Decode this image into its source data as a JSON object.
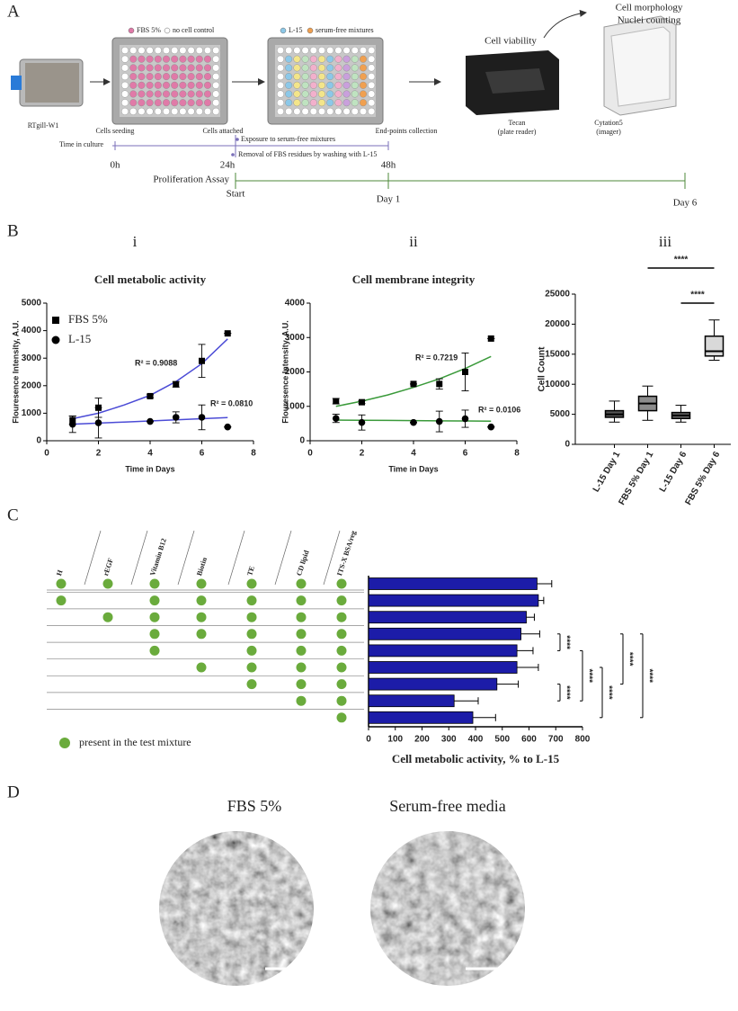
{
  "panel_labels": [
    "A",
    "B",
    "C",
    "D"
  ],
  "subpanels": [
    "i",
    "ii",
    "iii"
  ],
  "workflow": {
    "cell_line": "RTgill-W1",
    "plate1_legend": [
      "FBS 5%",
      "no cell control"
    ],
    "plate2_legend": [
      "L-15",
      "serum-free mixtures"
    ],
    "viability": "Cell viability",
    "morphology": [
      "Cell morphology",
      "Nuclei counting"
    ],
    "reader": [
      "Tecan",
      "(plate reader)"
    ],
    "imager": [
      "Cytation5",
      "(imager)"
    ],
    "timeline": {
      "label": "Time in culture",
      "events": [
        "Cells seeding",
        "Cells attached",
        "End-points collection"
      ],
      "steps": [
        "Exposure to serum-free mixtures",
        "Removal of FBS residues by washing with L-15"
      ],
      "ticks": [
        "0h",
        "24h",
        "48h"
      ]
    },
    "proliferation": {
      "label": "Proliferation Assay",
      "ticks": [
        "Start",
        "Day 1",
        "Day 6"
      ]
    }
  },
  "chart_data": [
    {
      "type": "scatter",
      "title": "Cell metabolic activity",
      "xlabel": "Time in Days",
      "ylabel": "Flouresence Intensity, A.U.",
      "xlim": [
        0,
        8
      ],
      "xticks": [
        0,
        2,
        4,
        6,
        8
      ],
      "ylim": [
        0,
        5000
      ],
      "yticks": [
        0,
        1000,
        2000,
        3000,
        4000,
        5000
      ],
      "legend": true,
      "fit_x": [
        1,
        2,
        3,
        4,
        5,
        6,
        7
      ],
      "series": [
        {
          "name": "FBS 5%",
          "color": "#000000",
          "marker": "square",
          "x": [
            1,
            2,
            4,
            5,
            6,
            7
          ],
          "values": [
            750,
            1200,
            1620,
            2050,
            2900,
            3900
          ],
          "errors": [
            150,
            350,
            50,
            100,
            600,
            0
          ],
          "fit_values": [
            800,
            1000,
            1300,
            1650,
            2150,
            2800,
            3700
          ],
          "fit_color": "#4b4bd6",
          "r2": "R² = 0.9088"
        },
        {
          "name": "L-15",
          "color": "#000000",
          "marker": "circle",
          "x": [
            1,
            2,
            4,
            5,
            6,
            7
          ],
          "values": [
            600,
            650,
            700,
            850,
            850,
            500
          ],
          "errors": [
            300,
            550,
            0,
            200,
            450,
            0
          ],
          "fit_values": [
            600,
            640,
            680,
            720,
            760,
            800,
            840
          ],
          "fit_color": "#4b4bd6",
          "r2": "R² = 0.0810"
        }
      ]
    },
    {
      "type": "scatter",
      "title": "Cell membrane integrity",
      "xlabel": "Time in Days",
      "ylabel": "Flouresence Intensity, A.U.",
      "xlim": [
        0,
        8
      ],
      "xticks": [
        0,
        2,
        4,
        6,
        8
      ],
      "ylim": [
        0,
        4000
      ],
      "yticks": [
        0,
        1000,
        2000,
        3000,
        4000
      ],
      "legend": false,
      "fit_x": [
        1,
        2,
        3,
        4,
        5,
        6,
        7
      ],
      "series": [
        {
          "name": "FBS 5%",
          "color": "#000000",
          "marker": "square",
          "x": [
            1,
            2,
            4,
            5,
            6,
            7
          ],
          "values": [
            1150,
            1120,
            1650,
            1650,
            2000,
            2970
          ],
          "errors": [
            80,
            40,
            0,
            150,
            550,
            0
          ],
          "fit_values": [
            1000,
            1150,
            1330,
            1550,
            1800,
            2100,
            2450
          ],
          "fit_color": "#3a9a3a",
          "r2": "R² = 0.7219"
        },
        {
          "name": "L-15",
          "color": "#000000",
          "marker": "circle",
          "x": [
            1,
            2,
            4,
            5,
            6,
            7
          ],
          "values": [
            650,
            530,
            530,
            560,
            640,
            400
          ],
          "errors": [
            120,
            220,
            0,
            300,
            250,
            0
          ],
          "fit_values": [
            600,
            595,
            590,
            585,
            580,
            575,
            570
          ],
          "fit_color": "#3a9a3a",
          "r2": "R² = 0.0106"
        }
      ]
    },
    {
      "type": "box",
      "ylabel": "Cell Count",
      "ylim": [
        0,
        25000
      ],
      "yticks": [
        0,
        5000,
        10000,
        15000,
        20000,
        25000
      ],
      "categories": [
        "L-15 Day 1",
        "FBS 5% Day 1",
        "L-15 Day 6",
        "FBS 5% Day 6"
      ],
      "boxes": [
        {
          "min": 3700,
          "q1": 4500,
          "median": 5000,
          "q3": 5600,
          "max": 7200,
          "color": "#555555"
        },
        {
          "min": 4000,
          "q1": 5600,
          "median": 6800,
          "q3": 8000,
          "max": 9700,
          "color": "#8c8c8c"
        },
        {
          "min": 3700,
          "q1": 4300,
          "median": 4800,
          "q3": 5300,
          "max": 6500,
          "color": "#666666"
        },
        {
          "min": 14000,
          "q1": 14700,
          "median": 15500,
          "q3": 18000,
          "max": 20700,
          "color": "#d9d9d9"
        }
      ],
      "significance": [
        {
          "pair": [
            1,
            3
          ],
          "label": "****"
        },
        {
          "pair": [
            2,
            3
          ],
          "label": "****"
        }
      ]
    },
    {
      "type": "barh",
      "xlabel": "Cell metabolic activity, % to L-15",
      "xlim": [
        0,
        800
      ],
      "xticks": [
        0,
        100,
        200,
        300,
        400,
        500,
        600,
        700,
        800
      ],
      "color": "#1c1ca8",
      "values": [
        630,
        635,
        590,
        570,
        555,
        555,
        480,
        320,
        390
      ],
      "errors": [
        55,
        20,
        30,
        70,
        60,
        80,
        80,
        90,
        85
      ],
      "significance": [
        {
          "pair": [
            3,
            4
          ],
          "label": "****"
        },
        {
          "pair": [
            6,
            7
          ],
          "label": "****"
        },
        {
          "pair": [
            4,
            7
          ],
          "label": "****"
        },
        {
          "pair": [
            5,
            8
          ],
          "label": "****"
        },
        {
          "pair": [
            3,
            6
          ],
          "label": "****"
        },
        {
          "pair": [
            3,
            8
          ],
          "label": "****"
        }
      ]
    }
  ],
  "table": {
    "columns": [
      "H",
      "rEGF",
      "Vitamin B12",
      "Biotin",
      "TE",
      "CD lipid",
      "ITS-X BSA/reg"
    ],
    "legend": "present in the test mixture",
    "rows": [
      [
        true,
        true,
        true,
        true,
        true,
        true,
        true
      ],
      [
        true,
        false,
        true,
        true,
        true,
        true,
        true
      ],
      [
        false,
        true,
        true,
        true,
        true,
        true,
        true
      ],
      [
        false,
        false,
        true,
        true,
        true,
        true,
        true
      ],
      [
        false,
        false,
        true,
        false,
        true,
        true,
        true
      ],
      [
        false,
        false,
        false,
        true,
        true,
        true,
        true
      ],
      [
        false,
        false,
        false,
        false,
        true,
        true,
        true
      ],
      [
        false,
        false,
        false,
        false,
        false,
        true,
        true
      ],
      [
        false,
        false,
        false,
        false,
        false,
        false,
        true
      ]
    ]
  },
  "micrographs": [
    "FBS 5%",
    "Serum-free media"
  ]
}
